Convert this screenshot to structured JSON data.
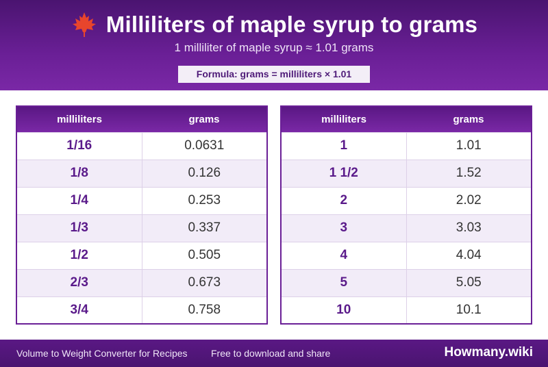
{
  "header": {
    "title": "Milliliters of maple syrup to grams",
    "subtitle": "1 milliliter of maple syrup ≈ 1.01 grams",
    "formula": "Formula: grams = milliliters × 1.01",
    "icon": "maple-leaf-icon"
  },
  "tables": {
    "col_ml": "milliliters",
    "col_g": "grams",
    "left": [
      {
        "ml": "1/16",
        "g": "0.0631"
      },
      {
        "ml": "1/8",
        "g": "0.126"
      },
      {
        "ml": "1/4",
        "g": "0.253"
      },
      {
        "ml": "1/3",
        "g": "0.337"
      },
      {
        "ml": "1/2",
        "g": "0.505"
      },
      {
        "ml": "2/3",
        "g": "0.673"
      },
      {
        "ml": "3/4",
        "g": "0.758"
      }
    ],
    "right": [
      {
        "ml": "1",
        "g": "1.01"
      },
      {
        "ml": "1 1/2",
        "g": "1.52"
      },
      {
        "ml": "2",
        "g": "2.02"
      },
      {
        "ml": "3",
        "g": "3.03"
      },
      {
        "ml": "4",
        "g": "4.04"
      },
      {
        "ml": "5",
        "g": "5.05"
      },
      {
        "ml": "10",
        "g": "10.1"
      }
    ]
  },
  "footer": {
    "left": "Volume to Weight Converter for Recipes",
    "mid": "Free to download and share",
    "brand": "Howmany.wiki"
  },
  "colors": {
    "primary": "#6a1f96",
    "leaf": "#e8452c"
  }
}
